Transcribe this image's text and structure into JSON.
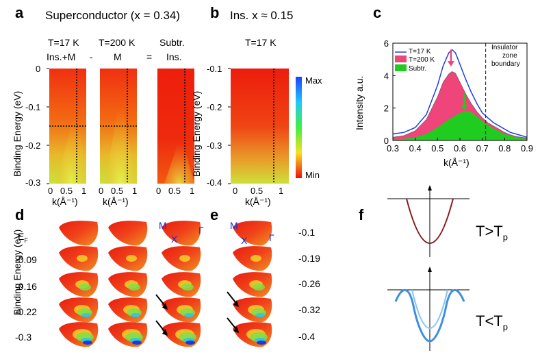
{
  "panel_labels": {
    "a": "a",
    "b": "b",
    "c": "c",
    "d": "d",
    "e": "e",
    "f": "f"
  },
  "panel_a": {
    "title": "Superconductor (x = 0.34)",
    "col_temps": [
      "T=17 K",
      "T=200 K",
      "Subtr."
    ],
    "col_contents": [
      "Ins.+M",
      "M",
      "Ins."
    ],
    "operators": [
      "-",
      "="
    ],
    "ylabel": "Binding Energy (eV)",
    "yticks": [
      "0",
      "-0.1",
      "-0.2",
      "-0.3"
    ],
    "xticks": [
      "0",
      "0.5",
      "1"
    ],
    "xlabel": "k(Å⁻¹)"
  },
  "panel_b": {
    "title": "Ins. x ≈ 0.15",
    "temp": "T=17 K",
    "ylabel": "Binding Energy (eV)",
    "yticks": [
      "-0.1",
      "-0.2",
      "-0.3",
      "-0.4"
    ],
    "xticks": [
      "0",
      "0.5",
      "1"
    ],
    "xlabel": "k(Å⁻¹)",
    "colorbar_max": "Max",
    "colorbar_min": "Min"
  },
  "panel_d": {
    "ylabel": "Binding Energy (eV)",
    "energies": [
      "E",
      "-0.09",
      "-0.16",
      "-0.22",
      "-0.3"
    ],
    "ef_sub": "F",
    "labels": {
      "M": "M",
      "X": "X",
      "Gamma": "Γ"
    }
  },
  "panel_e": {
    "energies": [
      "-0.1",
      "-0.19",
      "-0.26",
      "-0.32",
      "-0.4"
    ],
    "labels": {
      "M": "M",
      "X": "X",
      "Gamma": "Γ"
    }
  },
  "panel_f": {
    "top_label": "T>T",
    "bottom_label": "T<T",
    "sub": "p"
  },
  "chart_data": {
    "type": "line",
    "title": "",
    "xlabel": "k(Å⁻¹)",
    "ylabel": "Intensity a.u.",
    "xlim": [
      0.3,
      0.9
    ],
    "ylim": [
      0,
      6
    ],
    "xticks": [
      "0.3",
      "0.4",
      "0.5",
      "0.6",
      "0.7",
      "0.8",
      "0.9"
    ],
    "yticks": [
      "0",
      "2",
      "4",
      "6"
    ],
    "boundary_x": 0.715,
    "boundary_label": [
      "Insulator",
      "zone",
      "boundary"
    ],
    "legend": [
      "T=17 K",
      "T=200 K",
      "Subtr."
    ],
    "series": [
      {
        "name": "T=17 K",
        "type": "line",
        "color": "#1f3fe0",
        "x": [
          0.3,
          0.35,
          0.4,
          0.45,
          0.5,
          0.525,
          0.55,
          0.565,
          0.58,
          0.6,
          0.625,
          0.65,
          0.675,
          0.7,
          0.725,
          0.75,
          0.775,
          0.8,
          0.825,
          0.85,
          0.875,
          0.9
        ],
        "y": [
          0.4,
          0.5,
          0.8,
          1.6,
          3.4,
          4.6,
          5.4,
          5.6,
          5.4,
          4.7,
          3.8,
          3.0,
          2.3,
          1.7,
          1.4,
          1.1,
          0.9,
          0.7,
          0.5,
          0.4,
          0.3,
          0.2
        ]
      },
      {
        "name": "T=200 K",
        "type": "area",
        "color": "#f0457a",
        "x": [
          0.3,
          0.35,
          0.4,
          0.45,
          0.5,
          0.525,
          0.55,
          0.565,
          0.58,
          0.6,
          0.625,
          0.65,
          0.675,
          0.7,
          0.725,
          0.75,
          0.775,
          0.8,
          0.825,
          0.85,
          0.875,
          0.9
        ],
        "y": [
          0.2,
          0.3,
          0.6,
          1.3,
          2.7,
          3.6,
          4.1,
          4.25,
          4.15,
          3.6,
          2.9,
          2.3,
          1.8,
          1.4,
          1.1,
          0.9,
          0.7,
          0.5,
          0.35,
          0.25,
          0.2,
          0.15
        ]
      },
      {
        "name": "Subtr.",
        "type": "area",
        "color": "#1fcc1f",
        "x": [
          0.3,
          0.35,
          0.4,
          0.45,
          0.5,
          0.55,
          0.6,
          0.625,
          0.65,
          0.675,
          0.7,
          0.725,
          0.75,
          0.775,
          0.8,
          0.85,
          0.9
        ],
        "y": [
          0.05,
          0.1,
          0.2,
          0.4,
          0.8,
          1.3,
          1.7,
          1.8,
          1.75,
          1.5,
          1.2,
          0.95,
          0.75,
          0.55,
          0.4,
          0.2,
          0.1
        ]
      }
    ],
    "arrows": [
      {
        "color": "#f0457a",
        "x": 0.56,
        "y_from": 5.6,
        "y_to": 4.6
      },
      {
        "color": "#1fcc1f",
        "x": 0.62,
        "y_from": 2.9,
        "y_to": 1.9
      }
    ]
  }
}
